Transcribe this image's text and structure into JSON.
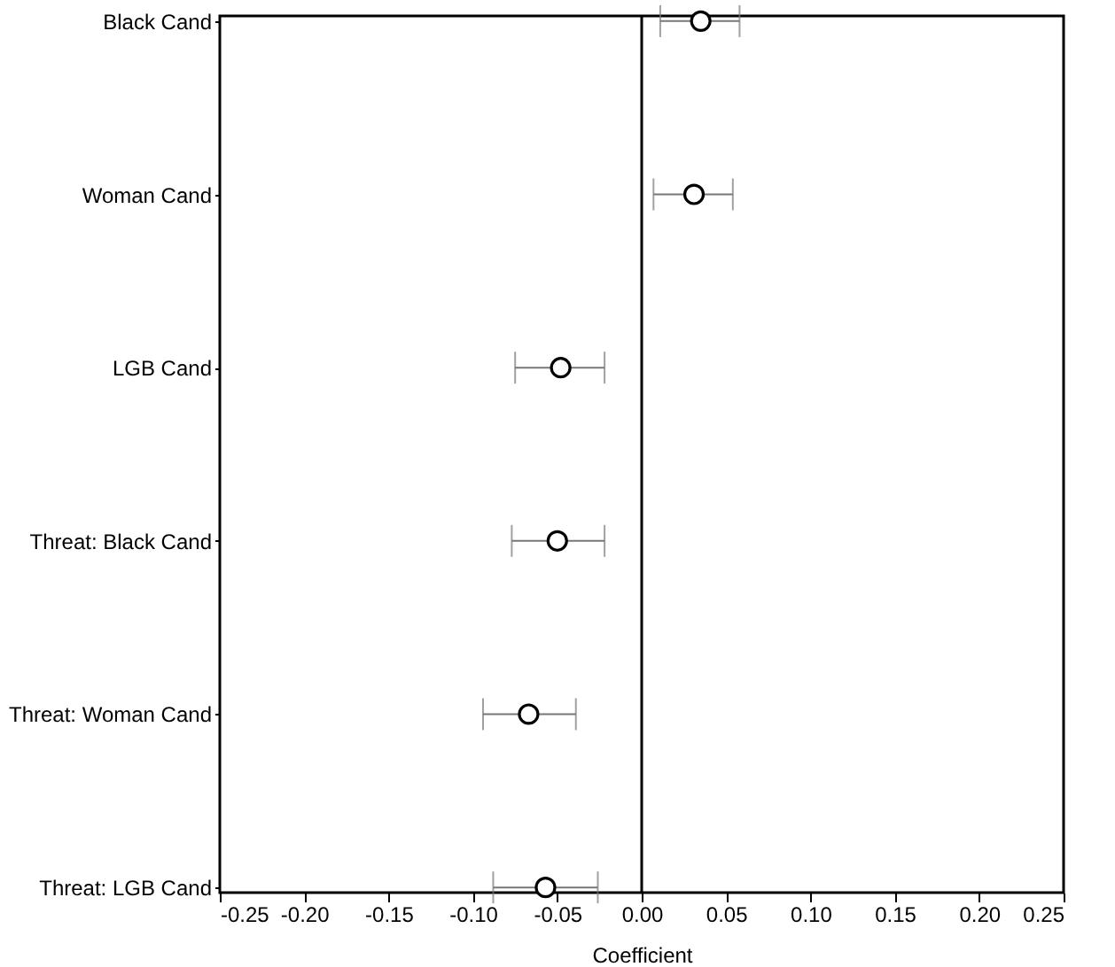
{
  "chart_data": {
    "type": "scatter",
    "orientation": "horizontal",
    "xlabel": "Coefficient",
    "categories": [
      "Black Cand",
      "Woman Cand",
      "LGB Cand",
      "Threat: Black Cand",
      "Threat: Woman Cand",
      "Threat: LGB Cand"
    ],
    "values": [
      0.035,
      0.031,
      -0.048,
      -0.05,
      -0.067,
      -0.057
    ],
    "errors": [
      [
        0.011,
        0.058
      ],
      [
        0.007,
        0.054
      ],
      [
        -0.075,
        -0.022
      ],
      [
        -0.077,
        -0.022
      ],
      [
        -0.094,
        -0.039
      ],
      [
        -0.088,
        -0.026
      ]
    ],
    "color": "#000000",
    "marker": "circle",
    "xlim": [
      -0.25,
      0.25
    ],
    "xticks": [
      -0.25,
      {
        "value": -0.2,
        "label": "-0.20"
      },
      -0.15,
      {
        "value": -0.1,
        "label": "-0.10"
      },
      -0.05,
      {
        "value": 0,
        "label": "0.00"
      },
      0.05,
      {
        "value": 0.1,
        "label": "0.10"
      },
      0.15,
      {
        "value": 0.2,
        "label": "0.20"
      },
      0.25
    ],
    "ref_lines": [
      {
        "axis": "x",
        "value": 0,
        "color": "#000000"
      }
    ]
  }
}
